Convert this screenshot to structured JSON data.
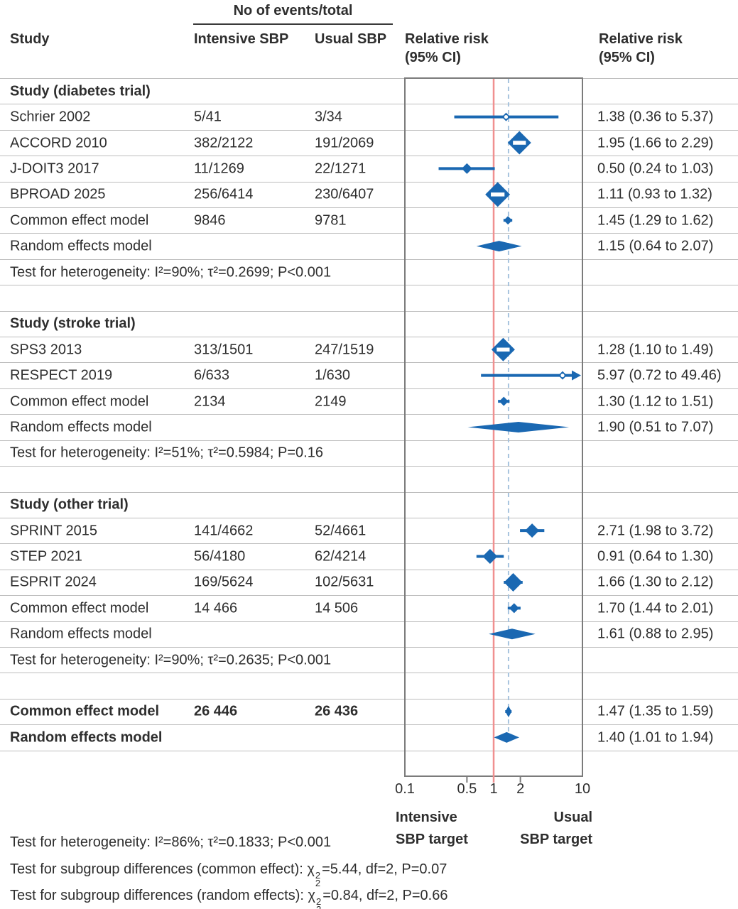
{
  "columns": {
    "events_header": "No of events/total",
    "study": "Study",
    "intensive": "Intensive SBP",
    "usual": "Usual SBP",
    "rr_plot": [
      "Relative risk",
      "(95% CI)"
    ],
    "rr_text": [
      "Relative risk",
      "(95% CI)"
    ]
  },
  "axis": {
    "ticks": [
      "0.1",
      "0.5",
      "1",
      "2",
      "10"
    ],
    "tick_values": [
      0.1,
      0.5,
      1,
      2,
      10
    ],
    "left_label": [
      "Intensive",
      "SBP target"
    ],
    "right_label": [
      "Usual",
      "SBP target"
    ]
  },
  "footnotes": [
    "Test for heterogeneity: I²=86%; τ²=0.1833; P<0.001",
    "Test for subgroup differences (common effect): χ₂²=5.44, df=2, P=0.07",
    "Test for subgroup differences (random effects): χ₂²=0.84, df=2, P=0.66"
  ],
  "colors": {
    "blue": "#1a68b2",
    "red_line": "#f09090",
    "dashed_line": "#a6c3de",
    "separator": "#bdbdbd",
    "box_border": "#7b7b7b",
    "text": "#2e2e2e"
  },
  "chart_data": {
    "type": "forest",
    "x_scale": "log10",
    "x_range": [
      0.1,
      10
    ],
    "ref_line": 1,
    "pooled_dashed_line": 1.47,
    "rows": [
      {
        "kind": "group",
        "label": "Study (diabetes trial)"
      },
      {
        "kind": "study",
        "label": "Schrier 2002",
        "intensive": "5/41",
        "usual": "3/34",
        "rr": "1.38 (0.36 to 5.37)",
        "est": 1.38,
        "lo": 0.36,
        "hi": 5.37,
        "mw": 12,
        "mh": 12,
        "open": true
      },
      {
        "kind": "study",
        "label": "ACCORD 2010",
        "intensive": "382/2122",
        "usual": "191/2069",
        "rr": "1.95 (1.66 to 2.29)",
        "est": 1.95,
        "lo": 1.66,
        "hi": 2.29,
        "mw": 33,
        "mh": 33,
        "bar": true
      },
      {
        "kind": "study",
        "label": "J-DOIT3 2017",
        "intensive": "11/1269",
        "usual": "22/1271",
        "rr": "0.50 (0.24 to 1.03)",
        "est": 0.5,
        "lo": 0.24,
        "hi": 1.03,
        "mw": 15,
        "mh": 15
      },
      {
        "kind": "study",
        "label": "BPROAD 2025",
        "intensive": "256/6414",
        "usual": "230/6407",
        "rr": "1.11 (0.93 to 1.32)",
        "est": 1.11,
        "lo": 0.93,
        "hi": 1.32,
        "mw": 35,
        "mh": 35,
        "bar": true
      },
      {
        "kind": "study",
        "label": "Common effect model",
        "intensive": "9846",
        "usual": "9781",
        "rr": "1.45 (1.29 to 1.62)",
        "est": 1.45,
        "lo": 1.29,
        "hi": 1.62,
        "mw": 12,
        "mh": 12
      },
      {
        "kind": "summary",
        "label": "Random effects model",
        "rr": "1.15 (0.64 to 2.07)",
        "est": 1.15,
        "lo": 0.64,
        "hi": 2.07
      },
      {
        "kind": "note",
        "label": "Test for heterogeneity: I²=90%; τ²=0.2699; P<0.001"
      },
      {
        "kind": "blank"
      },
      {
        "kind": "group",
        "label": "Study (stroke trial)"
      },
      {
        "kind": "study",
        "label": "SPS3 2013",
        "intensive": "313/1501",
        "usual": "247/1519",
        "rr": "1.28 (1.10 to 1.49)",
        "est": 1.28,
        "lo": 1.1,
        "hi": 1.49,
        "mw": 33,
        "mh": 33,
        "bar": true
      },
      {
        "kind": "study",
        "label": "RESPECT 2019",
        "intensive": "6/633",
        "usual": "1/630",
        "rr": "5.97 (0.72 to 49.46)",
        "est": 5.97,
        "lo": 0.72,
        "hi": 49.46,
        "mw": 12,
        "mh": 12,
        "open": true,
        "arrow": true
      },
      {
        "kind": "study",
        "label": "Common effect model",
        "intensive": "2134",
        "usual": "2149",
        "rr": "1.30 (1.12 to 1.51)",
        "est": 1.3,
        "lo": 1.12,
        "hi": 1.51,
        "mw": 13,
        "mh": 13
      },
      {
        "kind": "summary",
        "label": "Random effects model",
        "rr": "1.90 (0.51 to 7.07)",
        "est": 1.9,
        "lo": 0.51,
        "hi": 7.07
      },
      {
        "kind": "note",
        "label": "Test for heterogeneity: I²=51%; τ²=0.5984; P=0.16"
      },
      {
        "kind": "blank"
      },
      {
        "kind": "group",
        "label": "Study (other trial)"
      },
      {
        "kind": "study",
        "label": "SPRINT 2015",
        "intensive": "141/4662",
        "usual": "52/4661",
        "rr": "2.71 (1.98 to 3.72)",
        "est": 2.71,
        "lo": 1.98,
        "hi": 3.72,
        "mw": 20,
        "mh": 20
      },
      {
        "kind": "study",
        "label": "STEP 2021",
        "intensive": "56/4180",
        "usual": "62/4214",
        "rr": "0.91 (0.64 to 1.30)",
        "est": 0.91,
        "lo": 0.64,
        "hi": 1.3,
        "mw": 21,
        "mh": 21
      },
      {
        "kind": "study",
        "label": "ESPRIT 2024",
        "intensive": "169/5624",
        "usual": "102/5631",
        "rr": "1.66 (1.30 to 2.12)",
        "est": 1.66,
        "lo": 1.3,
        "hi": 2.12,
        "mw": 26,
        "mh": 26
      },
      {
        "kind": "study",
        "label": "Common effect model",
        "intensive": "14 466",
        "usual": "14 506",
        "rr": "1.70 (1.44 to 2.01)",
        "est": 1.7,
        "lo": 1.44,
        "hi": 2.01,
        "mw": 14,
        "mh": 14
      },
      {
        "kind": "summary",
        "label": "Random effects model",
        "rr": "1.61 (0.88 to 2.95)",
        "est": 1.61,
        "lo": 0.88,
        "hi": 2.95
      },
      {
        "kind": "note",
        "label": "Test for heterogeneity: I²=90%; τ²=0.2635; P<0.001"
      },
      {
        "kind": "blank"
      },
      {
        "kind": "study",
        "label": "Common effect model",
        "intensive": "26 446",
        "usual": "26 436",
        "rr": "1.47 (1.35 to 1.59)",
        "est": 1.47,
        "lo": 1.35,
        "hi": 1.59,
        "mw": 9,
        "mh": 16,
        "bold": true
      },
      {
        "kind": "summary",
        "label": "Random effects model",
        "rr": "1.40 (1.01 to 1.94)",
        "est": 1.4,
        "lo": 1.01,
        "hi": 1.94,
        "bold": true
      },
      {
        "kind": "blank"
      }
    ]
  }
}
